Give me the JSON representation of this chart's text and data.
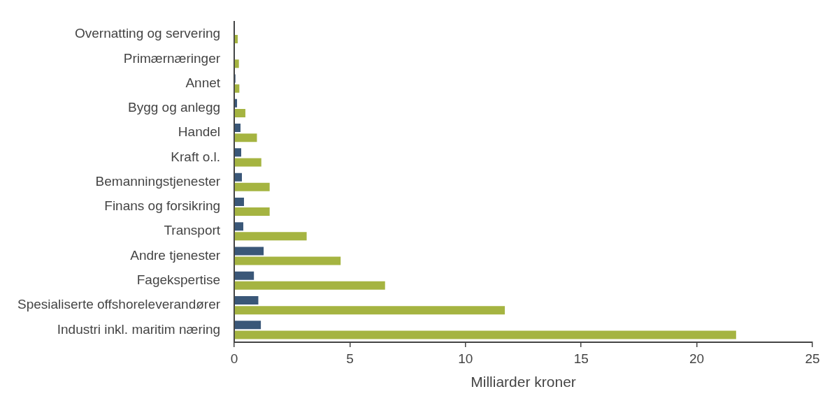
{
  "chart_data": {
    "type": "bar",
    "orientation": "horizontal",
    "xlabel": "Milliarder kroner",
    "categories": [
      "Overnatting og servering",
      "Primærnæringer",
      "Annet",
      "Bygg og anlegg",
      "Handel",
      "Kraft o.l.",
      "Bemanningstjenester",
      "Finans og forsikring",
      "Transport",
      "Andre tjenester",
      "Fagekspertise",
      "Spesialiserte offshoreleverandører",
      "Industri inkl. maritim næring"
    ],
    "series": [
      {
        "color": "#3a5778",
        "values": [
          0.02,
          0.02,
          0.05,
          0.12,
          0.27,
          0.3,
          0.33,
          0.42,
          0.39,
          1.27,
          0.85,
          1.04,
          1.15
        ]
      },
      {
        "color": "#a5b441",
        "values": [
          0.15,
          0.2,
          0.22,
          0.48,
          0.98,
          1.17,
          1.53,
          1.53,
          3.13,
          4.6,
          6.52,
          11.7,
          21.7
        ]
      }
    ],
    "xlim": [
      0,
      25
    ],
    "xticks": [
      0,
      5,
      10,
      15,
      20,
      25
    ],
    "grid": false,
    "legend": false
  }
}
